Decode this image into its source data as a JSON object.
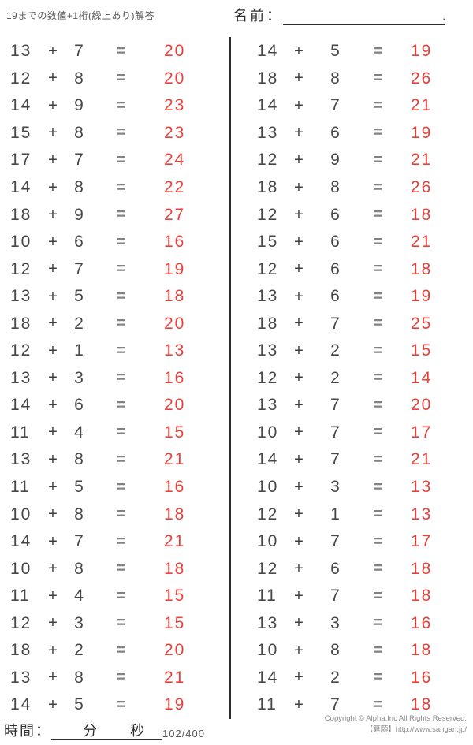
{
  "header": {
    "title": "19までの数値+1桁(繰上あり)解答",
    "name_label": "名前：",
    "name_line_period": "."
  },
  "symbols": {
    "plus": "+",
    "equals": "="
  },
  "colors": {
    "answer_red": "#e8403a",
    "text_dark": "#474747",
    "divider": "#2c2c2c"
  },
  "problems": {
    "left": [
      {
        "a": 13,
        "b": 7,
        "ans": 20
      },
      {
        "a": 12,
        "b": 8,
        "ans": 20
      },
      {
        "a": 14,
        "b": 9,
        "ans": 23
      },
      {
        "a": 15,
        "b": 8,
        "ans": 23
      },
      {
        "a": 17,
        "b": 7,
        "ans": 24
      },
      {
        "a": 14,
        "b": 8,
        "ans": 22
      },
      {
        "a": 18,
        "b": 9,
        "ans": 27
      },
      {
        "a": 10,
        "b": 6,
        "ans": 16
      },
      {
        "a": 12,
        "b": 7,
        "ans": 19
      },
      {
        "a": 13,
        "b": 5,
        "ans": 18
      },
      {
        "a": 18,
        "b": 2,
        "ans": 20
      },
      {
        "a": 12,
        "b": 1,
        "ans": 13
      },
      {
        "a": 13,
        "b": 3,
        "ans": 16
      },
      {
        "a": 14,
        "b": 6,
        "ans": 20
      },
      {
        "a": 11,
        "b": 4,
        "ans": 15
      },
      {
        "a": 13,
        "b": 8,
        "ans": 21
      },
      {
        "a": 11,
        "b": 5,
        "ans": 16
      },
      {
        "a": 10,
        "b": 8,
        "ans": 18
      },
      {
        "a": 14,
        "b": 7,
        "ans": 21
      },
      {
        "a": 10,
        "b": 8,
        "ans": 18
      },
      {
        "a": 11,
        "b": 4,
        "ans": 15
      },
      {
        "a": 12,
        "b": 3,
        "ans": 15
      },
      {
        "a": 18,
        "b": 2,
        "ans": 20
      },
      {
        "a": 13,
        "b": 8,
        "ans": 21
      },
      {
        "a": 14,
        "b": 5,
        "ans": 19
      }
    ],
    "right": [
      {
        "a": 14,
        "b": 5,
        "ans": 19
      },
      {
        "a": 18,
        "b": 8,
        "ans": 26
      },
      {
        "a": 14,
        "b": 7,
        "ans": 21
      },
      {
        "a": 13,
        "b": 6,
        "ans": 19
      },
      {
        "a": 12,
        "b": 9,
        "ans": 21
      },
      {
        "a": 18,
        "b": 8,
        "ans": 26
      },
      {
        "a": 12,
        "b": 6,
        "ans": 18
      },
      {
        "a": 15,
        "b": 6,
        "ans": 21
      },
      {
        "a": 12,
        "b": 6,
        "ans": 18
      },
      {
        "a": 13,
        "b": 6,
        "ans": 19
      },
      {
        "a": 18,
        "b": 7,
        "ans": 25
      },
      {
        "a": 13,
        "b": 2,
        "ans": 15
      },
      {
        "a": 12,
        "b": 2,
        "ans": 14
      },
      {
        "a": 13,
        "b": 7,
        "ans": 20
      },
      {
        "a": 10,
        "b": 7,
        "ans": 17
      },
      {
        "a": 14,
        "b": 7,
        "ans": 21
      },
      {
        "a": 10,
        "b": 3,
        "ans": 13
      },
      {
        "a": 12,
        "b": 1,
        "ans": 13
      },
      {
        "a": 10,
        "b": 7,
        "ans": 17
      },
      {
        "a": 12,
        "b": 6,
        "ans": 18
      },
      {
        "a": 11,
        "b": 7,
        "ans": 18
      },
      {
        "a": 13,
        "b": 3,
        "ans": 16
      },
      {
        "a": 10,
        "b": 8,
        "ans": 18
      },
      {
        "a": 14,
        "b": 2,
        "ans": 16
      },
      {
        "a": 11,
        "b": 7,
        "ans": 18
      }
    ]
  },
  "footer": {
    "time_label": "時間：",
    "minutes_label": "分",
    "seconds_label": "秒",
    "page_number": "102/400",
    "copyright_line1": "Copyright © Alpha.Inc All Rights Reserved.",
    "copyright_line2": "【算願】http://www.sangan.jp/"
  }
}
